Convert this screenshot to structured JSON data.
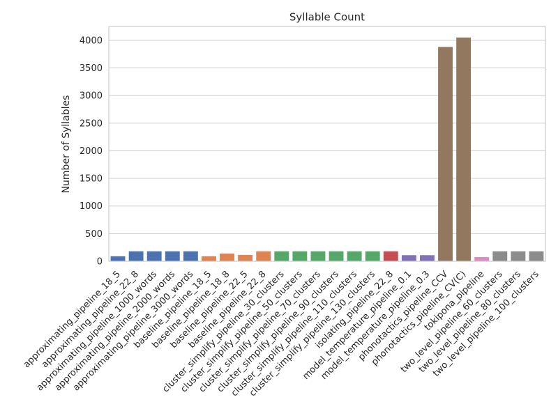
{
  "chart_data": {
    "type": "bar",
    "title": "Syllable Count",
    "xlabel": "",
    "ylabel": "Number of Syllables",
    "ylim": [
      0,
      4250
    ],
    "yticks": [
      0,
      500,
      1000,
      1500,
      2000,
      2500,
      3000,
      3500,
      4000
    ],
    "grid": true,
    "categories": [
      "approximating_pipeline_18_5",
      "approximating_pipeline_22_8",
      "approximating_pipeline_1000_words",
      "approximating_pipeline_2000_words",
      "approximating_pipeline_3000_words",
      "baseline_pipeline_18_5",
      "baseline_pipeline_18_8",
      "baseline_pipeline_22_5",
      "baseline_pipeline_22_8",
      "cluster_simplify_pipeline_30_clusters",
      "cluster_simplify_pipeline_50_clusters",
      "cluster_simplify_pipeline_70_clusters",
      "cluster_simplify_pipeline_90_clusters",
      "cluster_simplify_pipeline_110_clusters",
      "cluster_simplify_pipeline_130_clusters",
      "isolating_pipeline_22_8",
      "model_temperature_pipeline_0.1",
      "model_temperature_pipeline_0.3",
      "phonotactics_pipeline_CCV",
      "phonotactics_pipeline_CV(C)",
      "tokipona_pipeline",
      "two_level_pipeline_60_clusters",
      "two_level_pipeline_80_clusters",
      "two_level_pipeline_100_clusters"
    ],
    "values": [
      90,
      180,
      180,
      180,
      180,
      90,
      140,
      115,
      180,
      180,
      180,
      180,
      180,
      180,
      180,
      180,
      110,
      110,
      3880,
      4050,
      75,
      180,
      180,
      180
    ],
    "colors": [
      "#4c72b0",
      "#4c72b0",
      "#4c72b0",
      "#4c72b0",
      "#4c72b0",
      "#dd8452",
      "#dd8452",
      "#dd8452",
      "#dd8452",
      "#55a868",
      "#55a868",
      "#55a868",
      "#55a868",
      "#55a868",
      "#55a868",
      "#c44e52",
      "#8172b3",
      "#8172b3",
      "#937860",
      "#937860",
      "#da8bc3",
      "#8c8c8c",
      "#8c8c8c",
      "#8c8c8c"
    ]
  }
}
